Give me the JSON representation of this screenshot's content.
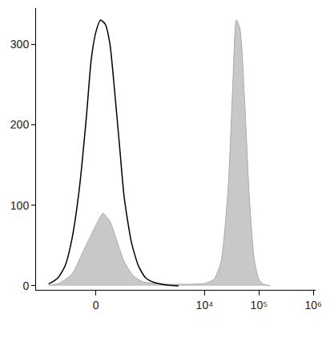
{
  "chart_data": {
    "type": "line",
    "xlim": [
      -1250,
      1100000
    ],
    "ylim": [
      -5,
      345
    ],
    "xticks": [
      0,
      {
        "value": 10000,
        "label": "10⁴"
      },
      {
        "value": 100000,
        "label": "10⁵"
      },
      {
        "value": 1000000,
        "label": "10⁶"
      }
    ],
    "yticks": [
      0,
      100,
      200,
      300
    ],
    "grid": false,
    "series": [
      {
        "type": "area",
        "color": "#c8c8c8",
        "x": [
          -725,
          -426,
          -235,
          -104,
          0,
          61,
          127,
          205,
          302,
          475,
          725,
          1204,
          2004,
          5458,
          9947,
          14841,
          20033,
          27042,
          33030,
          38377,
          44588,
          54457,
          66514,
          81240,
          99227,
          121196,
          163597
        ],
        "values": [
          0,
          4,
          15,
          45,
          75,
          90,
          80,
          55,
          30,
          12,
          5,
          3,
          2,
          2,
          3,
          8,
          30,
          120,
          250,
          330,
          320,
          230,
          110,
          35,
          8,
          2,
          0
        ]
      },
      {
        "type": "line",
        "color": "#000000",
        "x": [
          -725,
          -475,
          -340,
          -235,
          -152,
          -82,
          -40,
          0,
          40,
          82,
          127,
          178,
          235,
          302,
          426,
          588,
          808,
          1204,
          2004,
          3311
        ],
        "values": [
          2,
          10,
          25,
          60,
          120,
          210,
          280,
          315,
          330,
          325,
          300,
          240,
          175,
          110,
          55,
          25,
          10,
          4,
          1,
          0
        ]
      }
    ]
  }
}
